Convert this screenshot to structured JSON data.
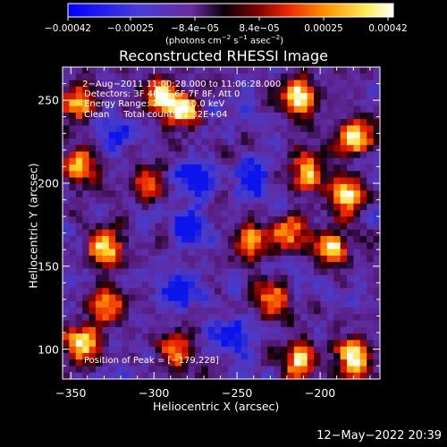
{
  "colorbar": {
    "tick_labels": [
      "−0.00042",
      "−0.00025",
      "−8.4e−05",
      "8.4e−05",
      "0.00025",
      "0.00042"
    ],
    "units_text": "(photons cm",
    "units_exp1": "−2",
    "units_mid": " s",
    "units_exp2": "−1",
    "units_tail": " asec",
    "units_exp3": "−2",
    "units_close": ")"
  },
  "title": "Reconstructed RHESSI Image",
  "annotations": {
    "time": " 2−Aug−2011 11:00:28.000 to 11:06:28.000",
    "detectors": "Detectors: 3F 4F 5F 6F 7F 8F, Att 0",
    "energy": "Energy Range: 25.0 − 50.0 keV",
    "clean": "Clean     Total counts: 1.32E+04",
    "peak": "Position of Peak = [−179,228]"
  },
  "footer": "12−May−2022 20:39",
  "chart_data": {
    "type": "heatmap",
    "title": "Reconstructed RHESSI Image",
    "xlabel": "Heliocentric X (arcsec)",
    "ylabel": "Heliocentric Y (arcsec)",
    "xlim": [
      -355,
      -164
    ],
    "ylim": [
      82,
      270
    ],
    "x_ticks": [
      -350,
      -300,
      -250,
      -200
    ],
    "y_ticks": [
      100,
      150,
      200,
      250
    ],
    "x_tick_labels": [
      "−350",
      "−300",
      "−250",
      "−200"
    ],
    "y_tick_labels": [
      "100",
      "150",
      "200",
      "250"
    ],
    "color_range": [
      -0.00042,
      0.00042
    ],
    "colormap": "RHESSI (blue-purple-black-red-orange-yellow-white)",
    "peak_position": [
      -179,
      228
    ],
    "grid_cols": 48,
    "grid_rows": 48,
    "bright_regions": [
      {
        "x": -179,
        "y": 228,
        "level": 1.0
      },
      {
        "x": -213,
        "y": 252,
        "level": 0.75
      },
      {
        "x": -283,
        "y": 243,
        "level": 0.8
      },
      {
        "x": -296,
        "y": 255,
        "level": 0.7
      },
      {
        "x": -347,
        "y": 248,
        "level": 0.6
      },
      {
        "x": -183,
        "y": 192,
        "level": 0.85
      },
      {
        "x": -208,
        "y": 207,
        "level": 0.7
      },
      {
        "x": -193,
        "y": 162,
        "level": 0.75
      },
      {
        "x": -219,
        "y": 170,
        "level": 0.7
      },
      {
        "x": -243,
        "y": 165,
        "level": 0.65
      },
      {
        "x": -230,
        "y": 130,
        "level": 0.55
      },
      {
        "x": -213,
        "y": 93,
        "level": 0.7
      },
      {
        "x": -180,
        "y": 95,
        "level": 0.75
      },
      {
        "x": -330,
        "y": 162,
        "level": 0.7
      },
      {
        "x": -344,
        "y": 103,
        "level": 0.9
      },
      {
        "x": -328,
        "y": 125,
        "level": 0.6
      },
      {
        "x": -285,
        "y": 100,
        "level": 0.5
      },
      {
        "x": -305,
        "y": 200,
        "level": 0.55
      },
      {
        "x": -345,
        "y": 210,
        "level": 0.6
      }
    ],
    "dark_regions": [
      {
        "x": -278,
        "y": 175,
        "level": -0.8
      },
      {
        "x": -285,
        "y": 135,
        "level": -0.7
      },
      {
        "x": -240,
        "y": 200,
        "level": -0.6
      },
      {
        "x": -255,
        "y": 108,
        "level": -0.6
      },
      {
        "x": -275,
        "y": 205,
        "level": -0.7
      },
      {
        "x": -325,
        "y": 230,
        "level": -0.5
      }
    ]
  }
}
